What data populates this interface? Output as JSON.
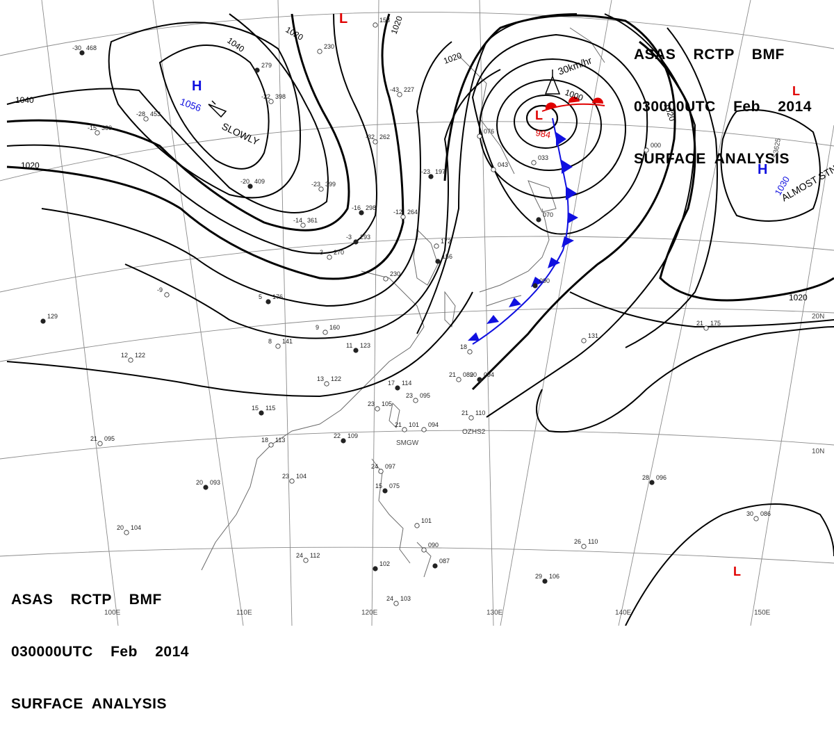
{
  "header_top": {
    "line1": "ASAS    RCTP    BMF",
    "line2": "030000UTC    Feb    2014",
    "line3": "SURFACE  ANALYSIS"
  },
  "header_bottom": {
    "line1": "ASAS    RCTP    BMF",
    "line2": "030000UTC    Feb    2014",
    "line3": "SURFACE  ANALYSIS"
  },
  "pressure_systems": [
    {
      "type": "H",
      "value": "1056",
      "color": "#1010e0",
      "motion": "SLOWLY"
    },
    {
      "type": "L",
      "value": "984",
      "color": "#e00000",
      "motion": "30km/hr"
    },
    {
      "type": "H",
      "value": "1030",
      "color": "#1010e0",
      "motion": "ALMOST STNR"
    },
    {
      "type": "L",
      "value": "",
      "color": "#e00000",
      "motion": ""
    },
    {
      "type": "L",
      "value": "",
      "color": "#e00000",
      "motion": ""
    },
    {
      "type": "L",
      "value": "",
      "color": "#e00000",
      "motion": ""
    }
  ],
  "isobar_labels": [
    "1040",
    "1040",
    "1020",
    "1020",
    "1020",
    "1020",
    "1000",
    "1020",
    "1020"
  ],
  "longitude_labels": [
    "100E",
    "110E",
    "120E",
    "130E",
    "140E",
    "150E"
  ],
  "latitude_labels": [
    "20N",
    "10N"
  ],
  "fronts": [
    {
      "type": "warm",
      "color": "#e00000"
    },
    {
      "type": "cold",
      "color": "#1010e0"
    }
  ],
  "stations": [
    {
      "t": "-30",
      "p": "468"
    },
    {
      "t": "-15",
      "p": "360"
    },
    {
      "t": "-28",
      "p": "453"
    },
    {
      "t": "-20",
      "p": "409"
    },
    {
      "t": "-23",
      "p": "399"
    },
    {
      "t": "-14",
      "p": "361"
    },
    {
      "t": "-16",
      "p": "298"
    },
    {
      "t": "-12",
      "p": "264"
    },
    {
      "t": "-32",
      "p": "262"
    },
    {
      "t": "-23",
      "p": "197"
    },
    {
      "t": "-43",
      "p": "227"
    },
    {
      "t": "-22",
      "p": "398"
    },
    {
      "t": "-3",
      "p": "293"
    },
    {
      "t": "3",
      "p": "270"
    },
    {
      "t": "-9",
      "p": ""
    },
    {
      "t": "5",
      "p": "176"
    },
    {
      "t": "9",
      "p": "160"
    },
    {
      "t": "8",
      "p": "141"
    },
    {
      "t": "11",
      "p": "123"
    },
    {
      "t": "12",
      "p": "122"
    },
    {
      "t": "13",
      "p": "122"
    },
    {
      "t": "17",
      "p": "114"
    },
    {
      "t": "23",
      "p": "105"
    },
    {
      "t": "23",
      "p": "095"
    },
    {
      "t": "15",
      "p": "115"
    },
    {
      "t": "18",
      "p": "113"
    },
    {
      "t": "21",
      "p": "095"
    },
    {
      "t": "22",
      "p": "109"
    },
    {
      "t": "21",
      "p": "101"
    },
    {
      "t": "",
      "p": "094"
    },
    {
      "t": "20",
      "p": "093"
    },
    {
      "t": "23",
      "p": "104"
    },
    {
      "t": "24",
      "p": "097"
    },
    {
      "t": "15",
      "p": "075"
    },
    {
      "t": "20",
      "p": "104"
    },
    {
      "t": "24",
      "p": "112"
    },
    {
      "t": "",
      "p": "102"
    },
    {
      "t": "24",
      "p": "103"
    },
    {
      "t": "",
      "p": "101"
    },
    {
      "t": "",
      "p": "087"
    },
    {
      "t": "",
      "p": "090"
    },
    {
      "t": "21",
      "p": "089"
    },
    {
      "t": "20",
      "p": "094"
    },
    {
      "t": "21",
      "p": "110"
    },
    {
      "t": "18",
      "p": ""
    },
    {
      "t": "",
      "p": "090"
    },
    {
      "t": "",
      "p": "131"
    },
    {
      "t": "21",
      "p": "175"
    },
    {
      "t": "28",
      "p": "096"
    },
    {
      "t": "30",
      "p": "086"
    },
    {
      "t": "26",
      "p": "110"
    },
    {
      "t": "29",
      "p": "106"
    },
    {
      "t": "",
      "p": "230"
    },
    {
      "t": "",
      "p": "172"
    },
    {
      "t": "",
      "p": "156"
    },
    {
      "t": "",
      "p": "158"
    },
    {
      "t": "",
      "p": "230"
    },
    {
      "t": "",
      "p": "279"
    },
    {
      "t": "",
      "p": "076"
    },
    {
      "t": "",
      "p": "043"
    },
    {
      "t": "",
      "p": "070"
    },
    {
      "t": "",
      "p": "033"
    },
    {
      "t": "",
      "p": "000"
    },
    {
      "t": "",
      "p": "129"
    }
  ],
  "misc_labels": {
    "smgw": "SMGW",
    "ozhs2": "OZHS2",
    "s3625": "S3625"
  },
  "colors": {
    "isobar": "#000000",
    "grid": "#8a8a8a",
    "coast": "#6a6a6a",
    "high": "#1010e0",
    "low": "#e00000"
  }
}
